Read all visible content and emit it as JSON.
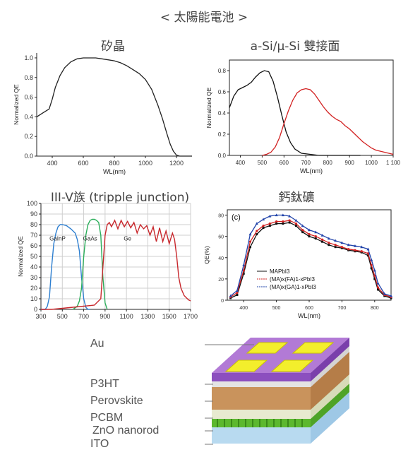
{
  "page_title": "< 太陽能電池 >",
  "chart_data": [
    {
      "id": "si",
      "type": "line",
      "title": "矽晶",
      "xlabel": "WL(nm)",
      "ylabel": "Normalized QE",
      "xlim": [
        300,
        1300
      ],
      "ylim": [
        0,
        1.05
      ],
      "xticks": [
        "400",
        "600",
        "800",
        "1000",
        "1200"
      ],
      "yticks": [
        "0.0",
        "0.2",
        "0.4",
        "0.6",
        "0.8",
        "1.0"
      ],
      "series": [
        {
          "color": "#222222",
          "x": [
            300,
            340,
            380,
            400,
            420,
            450,
            480,
            520,
            560,
            600,
            640,
            680,
            720,
            760,
            800,
            840,
            880,
            920,
            960,
            1000,
            1040,
            1080,
            1110,
            1140,
            1160,
            1180,
            1200,
            1220,
            1240,
            1260,
            1280,
            1300
          ],
          "y": [
            0.4,
            0.44,
            0.48,
            0.58,
            0.7,
            0.82,
            0.9,
            0.96,
            0.99,
            1.0,
            1.0,
            1.0,
            0.99,
            0.98,
            0.97,
            0.95,
            0.92,
            0.88,
            0.84,
            0.78,
            0.68,
            0.52,
            0.38,
            0.22,
            0.12,
            0.05,
            0.01,
            0.0,
            0.0,
            0.0,
            0.0,
            0.0
          ]
        }
      ]
    },
    {
      "id": "asi",
      "type": "line",
      "title": "a-Si/µ-Si 雙接面",
      "xlabel": "WL(nm)",
      "ylabel": "Normalized QE",
      "xlim": [
        350,
        1100
      ],
      "ylim": [
        0,
        0.9
      ],
      "xticks": [
        "400",
        "500",
        "600",
        "700",
        "800",
        "900",
        "1000",
        "1 100"
      ],
      "yticks": [
        "0.0",
        "0.2",
        "0.4",
        "0.6",
        "0.8"
      ],
      "series": [
        {
          "color": "#111111",
          "x": [
            350,
            370,
            390,
            410,
            430,
            450,
            470,
            490,
            510,
            530,
            550,
            570,
            590,
            610,
            630,
            650,
            680,
            720,
            760,
            800,
            850,
            900,
            950
          ],
          "y": [
            0.45,
            0.56,
            0.62,
            0.64,
            0.66,
            0.69,
            0.74,
            0.78,
            0.8,
            0.79,
            0.7,
            0.55,
            0.38,
            0.22,
            0.12,
            0.06,
            0.02,
            0.01,
            0.0,
            0.0,
            0.0,
            0.0,
            0.0
          ]
        },
        {
          "color": "#d22222",
          "x": [
            500,
            520,
            540,
            560,
            580,
            600,
            620,
            640,
            660,
            680,
            700,
            720,
            740,
            760,
            780,
            800,
            820,
            840,
            860,
            880,
            900,
            920,
            940,
            960,
            980,
            1000,
            1020,
            1040,
            1060,
            1080,
            1100
          ],
          "y": [
            0.0,
            0.01,
            0.03,
            0.08,
            0.17,
            0.3,
            0.42,
            0.52,
            0.59,
            0.62,
            0.63,
            0.62,
            0.58,
            0.52,
            0.46,
            0.41,
            0.37,
            0.34,
            0.32,
            0.28,
            0.25,
            0.21,
            0.17,
            0.13,
            0.1,
            0.07,
            0.05,
            0.04,
            0.03,
            0.02,
            0.01
          ]
        }
      ]
    },
    {
      "id": "iiiv",
      "type": "line",
      "title": "III-V族 (tripple junction)",
      "xlabel": "",
      "ylabel": "Normalized QE",
      "xlim": [
        300,
        1700
      ],
      "ylim": [
        0,
        100
      ],
      "xticks": [
        "300",
        "500",
        "700",
        "900",
        "1100",
        "1300",
        "1500",
        "1700"
      ],
      "yticks": [
        "0",
        "10",
        "20",
        "30",
        "40",
        "50",
        "60",
        "70",
        "80",
        "90",
        "100"
      ],
      "annotations": [
        "GaInP",
        "GaAs",
        "Ge"
      ],
      "series": [
        {
          "color": "#2e7fd0",
          "x": [
            300,
            340,
            360,
            380,
            400,
            420,
            440,
            460,
            480,
            500,
            540,
            580,
            620,
            640,
            660,
            680,
            700,
            720,
            740,
            760
          ],
          "y": [
            0,
            0,
            3,
            12,
            40,
            62,
            72,
            78,
            80,
            80,
            79,
            76,
            72,
            66,
            55,
            30,
            10,
            2,
            0,
            0
          ]
        },
        {
          "color": "#2cae5b",
          "x": [
            600,
            640,
            660,
            680,
            700,
            720,
            740,
            760,
            780,
            800,
            820,
            840,
            860,
            880,
            900,
            920
          ],
          "y": [
            0,
            3,
            8,
            20,
            50,
            70,
            80,
            84,
            85,
            85,
            84,
            82,
            70,
            30,
            6,
            0
          ]
        },
        {
          "color": "#c8282d",
          "x": [
            300,
            400,
            500,
            600,
            700,
            800,
            860,
            880,
            900,
            920,
            940,
            960,
            990,
            1020,
            1050,
            1080,
            1110,
            1140,
            1170,
            1200,
            1230,
            1260,
            1290,
            1320,
            1350,
            1380,
            1410,
            1440,
            1470,
            1500,
            1530,
            1550,
            1570,
            1590,
            1610,
            1640,
            1680,
            1700
          ],
          "y": [
            0,
            0,
            1,
            2,
            3,
            4,
            10,
            40,
            70,
            80,
            82,
            78,
            84,
            76,
            84,
            78,
            83,
            77,
            82,
            72,
            80,
            76,
            79,
            70,
            78,
            64,
            77,
            64,
            74,
            62,
            72,
            66,
            50,
            30,
            20,
            13,
            9,
            8
          ]
        }
      ]
    },
    {
      "id": "perov",
      "type": "line",
      "title": "鈣鈦礦",
      "panel_label": "(c)",
      "xlabel": "WL(nm)",
      "ylabel": "QE(%)",
      "xlim": [
        350,
        850
      ],
      "ylim": [
        0,
        85
      ],
      "xticks": [
        "400",
        "500",
        "600",
        "700",
        "800"
      ],
      "yticks": [
        "0",
        "20",
        "40",
        "60",
        "80"
      ],
      "legend": [
        "MAPbI3",
        "(MA)x(FA)1-xPbI3",
        "(MA)x(GA)1-xPbI3"
      ],
      "series": [
        {
          "color": "#111111",
          "x": [
            360,
            380,
            400,
            420,
            440,
            460,
            480,
            500,
            520,
            540,
            560,
            580,
            600,
            620,
            640,
            660,
            680,
            700,
            720,
            740,
            760,
            780,
            790,
            800,
            810,
            830,
            850
          ],
          "y": [
            2,
            5,
            25,
            50,
            62,
            68,
            70,
            72,
            72,
            73,
            70,
            64,
            60,
            58,
            55,
            52,
            50,
            49,
            47,
            46,
            45,
            42,
            30,
            20,
            10,
            4,
            2
          ]
        },
        {
          "color": "#d22222",
          "x": [
            360,
            380,
            400,
            420,
            440,
            460,
            480,
            500,
            520,
            540,
            560,
            580,
            600,
            620,
            640,
            660,
            680,
            700,
            720,
            740,
            760,
            780,
            790,
            800,
            810,
            830,
            850
          ],
          "y": [
            3,
            7,
            28,
            55,
            65,
            70,
            72,
            74,
            74,
            75,
            72,
            66,
            62,
            60,
            57,
            54,
            52,
            50,
            48,
            47,
            46,
            44,
            33,
            23,
            12,
            5,
            3
          ]
        },
        {
          "color": "#2244aa",
          "x": [
            360,
            380,
            400,
            420,
            440,
            460,
            480,
            500,
            520,
            540,
            560,
            580,
            600,
            620,
            640,
            660,
            680,
            700,
            720,
            740,
            760,
            780,
            790,
            800,
            810,
            830,
            850
          ],
          "y": [
            4,
            9,
            33,
            62,
            72,
            76,
            79,
            80,
            80,
            79,
            75,
            70,
            66,
            64,
            61,
            58,
            56,
            54,
            52,
            51,
            50,
            48,
            38,
            28,
            16,
            6,
            4
          ]
        }
      ]
    }
  ],
  "device_layers": [
    "Au",
    "P3HT",
    "Perovskite",
    "PCBM",
    "ZnO nanorod",
    "ITO"
  ]
}
